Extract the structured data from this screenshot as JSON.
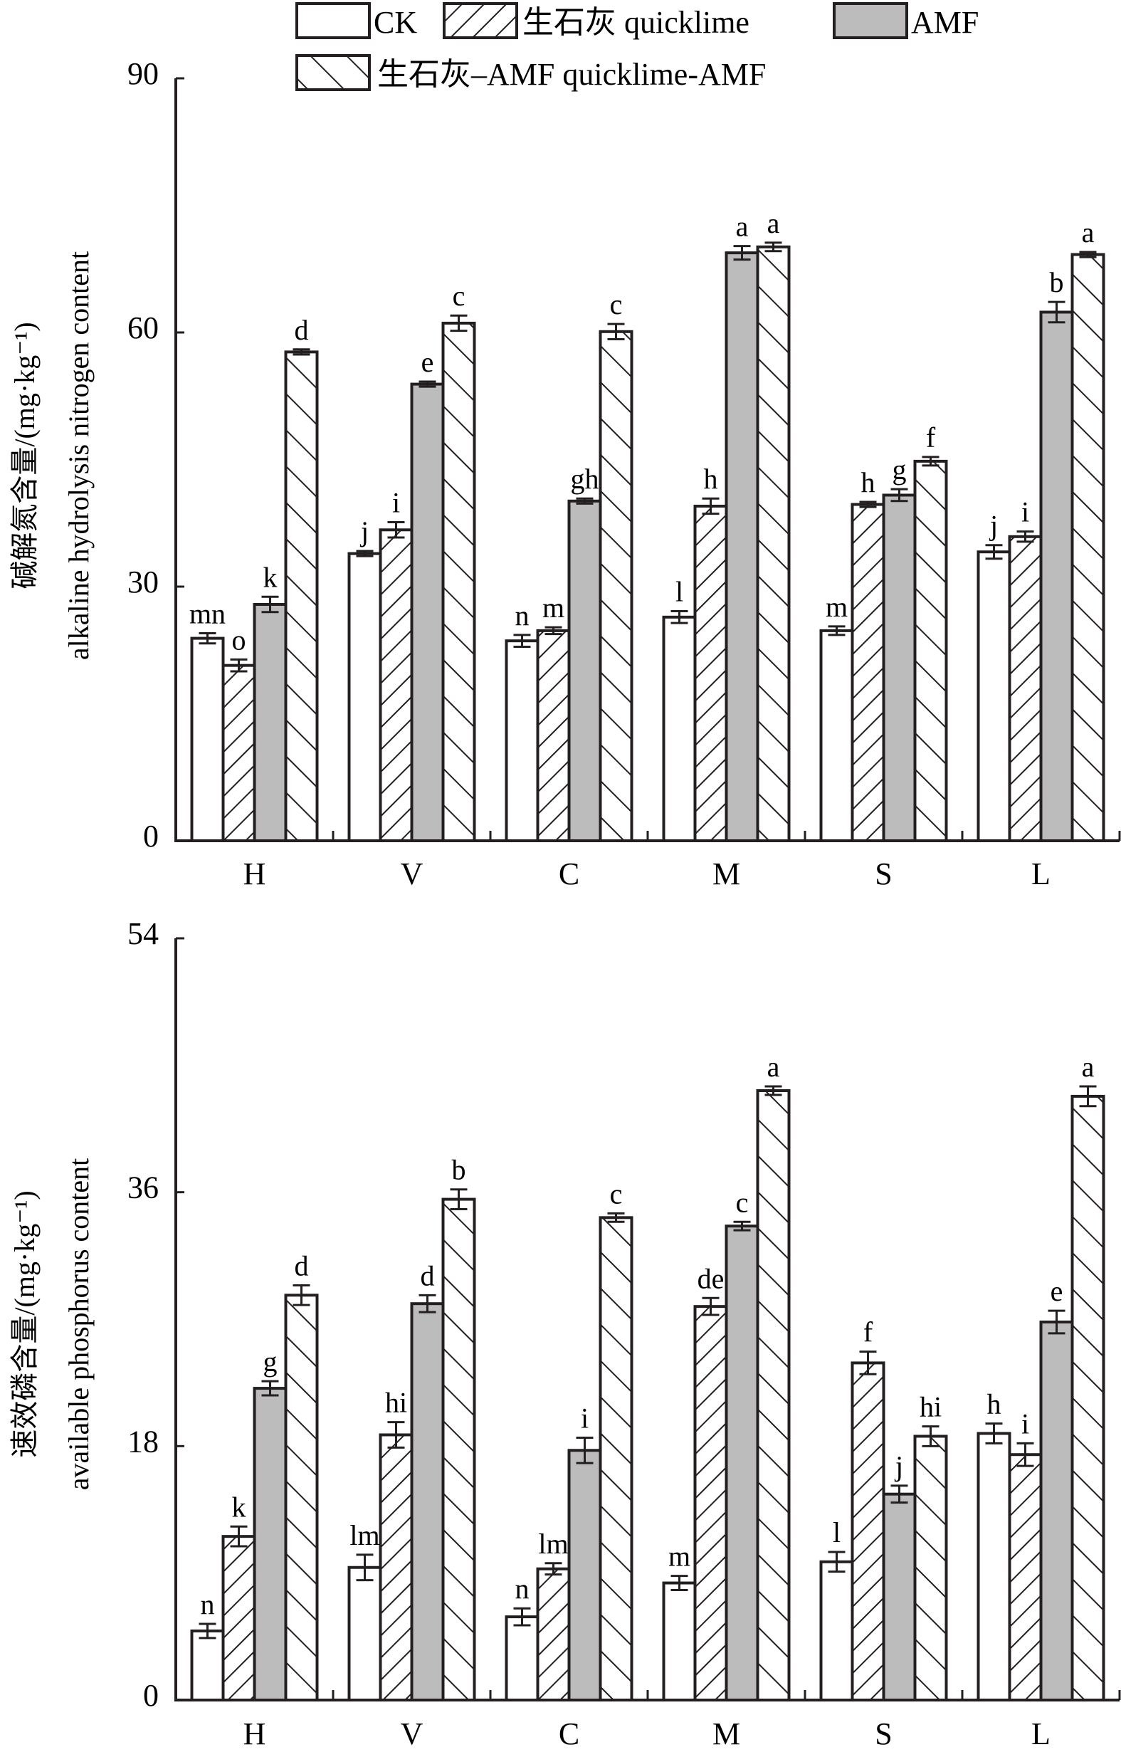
{
  "legend": {
    "items": [
      {
        "key": "CK",
        "label": "CK",
        "pattern": "empty"
      },
      {
        "key": "quicklime",
        "label": "生石灰 quicklime",
        "pattern": "forward-hatch"
      },
      {
        "key": "AMF",
        "label": "AMF",
        "pattern": "gray"
      },
      {
        "key": "quicklime_AMF",
        "label": "生石灰–AMF quicklime-AMF",
        "pattern": "back-hatch"
      }
    ],
    "placement": "top"
  },
  "colors": {
    "line": "#231f20",
    "gray": "#bcbcbc",
    "background": "#ffffff"
  },
  "chart_data": [
    {
      "type": "bar",
      "title": "",
      "ylabel_cn": "碱解氮含量/(mg·kg⁻¹)",
      "ylabel_en": "alkaline hydrolysis nitrogen content",
      "xlabel": "",
      "categories": [
        "H",
        "V",
        "C",
        "M",
        "S",
        "L"
      ],
      "ylim": [
        0,
        90
      ],
      "yticks": [
        0,
        30,
        60,
        90
      ],
      "grid": false,
      "series": [
        {
          "name": "CK",
          "values": [
            23.9,
            33.9,
            23.6,
            26.4,
            24.8,
            34.1
          ],
          "errors": [
            0.6,
            0.3,
            0.7,
            0.7,
            0.5,
            0.8
          ],
          "letters": [
            "mn",
            "j",
            "n",
            "l",
            "m",
            "j"
          ]
        },
        {
          "name": "生石灰 quicklime",
          "values": [
            20.7,
            36.7,
            24.8,
            39.5,
            39.7,
            35.9
          ],
          "errors": [
            0.7,
            0.9,
            0.4,
            0.9,
            0.3,
            0.6
          ],
          "letters": [
            "o",
            "i",
            "m",
            "h",
            "h",
            "i"
          ]
        },
        {
          "name": "AMF",
          "values": [
            27.9,
            53.9,
            40.1,
            69.4,
            40.8,
            62.4
          ],
          "errors": [
            0.9,
            0.3,
            0.3,
            0.8,
            0.7,
            1.2
          ],
          "letters": [
            "k",
            "e",
            "gh",
            "a",
            "g",
            "b"
          ]
        },
        {
          "name": "生石灰-AMF quicklime-AMF",
          "values": [
            57.7,
            61.1,
            60.1,
            70.1,
            44.8,
            69.2
          ],
          "errors": [
            0.3,
            0.9,
            0.9,
            0.5,
            0.5,
            0.3
          ],
          "letters": [
            "d",
            "c",
            "c",
            "a",
            "f",
            "a"
          ]
        }
      ]
    },
    {
      "type": "bar",
      "title": "",
      "ylabel_cn": "速效磷含量/(mg·kg⁻¹)",
      "ylabel_en": "available phosphorus content",
      "xlabel": "",
      "categories": [
        "H",
        "V",
        "C",
        "M",
        "S",
        "L"
      ],
      "ylim": [
        0,
        54
      ],
      "yticks": [
        0,
        18,
        36,
        54
      ],
      "grid": false,
      "series": [
        {
          "name": "CK",
          "values": [
            4.9,
            9.4,
            5.9,
            8.3,
            9.8,
            18.9
          ],
          "errors": [
            0.5,
            0.9,
            0.6,
            0.5,
            0.7,
            0.7
          ],
          "letters": [
            "n",
            "lm",
            "n",
            "m",
            "l",
            "h"
          ]
        },
        {
          "name": "生石灰 quicklime",
          "values": [
            11.6,
            18.8,
            9.3,
            27.9,
            23.9,
            17.4
          ],
          "errors": [
            0.7,
            0.9,
            0.4,
            0.6,
            0.8,
            0.8
          ],
          "letters": [
            "k",
            "hi",
            "lm",
            "de",
            "f",
            "i"
          ]
        },
        {
          "name": "AMF",
          "values": [
            22.1,
            28.1,
            17.7,
            33.6,
            14.6,
            26.8
          ],
          "errors": [
            0.5,
            0.6,
            0.9,
            0.3,
            0.6,
            0.8
          ],
          "letters": [
            "g",
            "d",
            "i",
            "c",
            "j",
            "e"
          ]
        },
        {
          "name": "生石灰-AMF quicklime-AMF",
          "values": [
            28.7,
            35.5,
            34.2,
            43.2,
            18.7,
            42.8
          ],
          "errors": [
            0.7,
            0.7,
            0.3,
            0.3,
            0.7,
            0.7
          ],
          "letters": [
            "d",
            "b",
            "c",
            "a",
            "hi",
            "a"
          ]
        }
      ]
    }
  ]
}
